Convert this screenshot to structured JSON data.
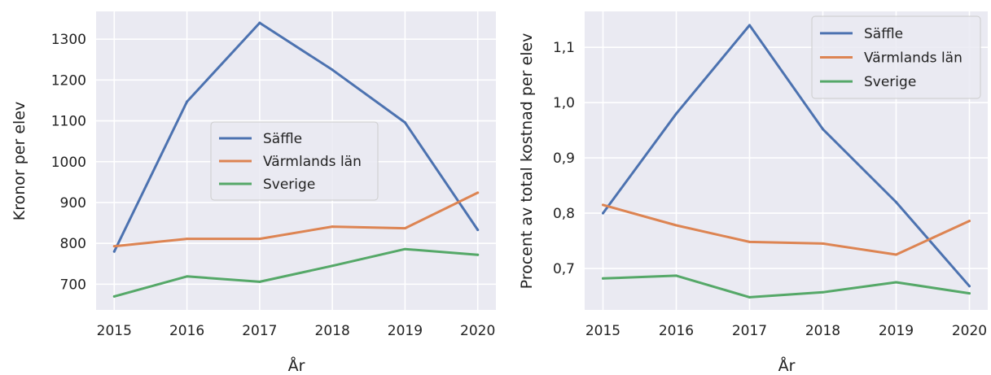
{
  "chart_data": [
    {
      "type": "line",
      "x": [
        2015,
        2016,
        2017,
        2018,
        2019,
        2020
      ],
      "xlabel": "År",
      "ylabel": "Kronor per elev",
      "xticks": [
        "2015",
        "2016",
        "2017",
        "2018",
        "2019",
        "2020"
      ],
      "yticks": [
        "700",
        "800",
        "900",
        "1000",
        "1100",
        "1200",
        "1300"
      ],
      "ytick_values": [
        700,
        800,
        900,
        1000,
        1100,
        1200,
        1300
      ],
      "xlim": [
        2014.75,
        2020.25
      ],
      "ylim": [
        637,
        1368
      ],
      "grid": true,
      "legend": "center-right",
      "series": [
        {
          "name": "Säffle",
          "color": "#4c72b0",
          "values": [
            780,
            1147,
            1340,
            1225,
            1096,
            833
          ]
        },
        {
          "name": "Värmlands län",
          "color": "#dd8452",
          "values": [
            793,
            811,
            811,
            841,
            837,
            924
          ]
        },
        {
          "name": "Sverige",
          "color": "#55a868",
          "values": [
            670,
            719,
            706,
            745,
            786,
            772
          ]
        }
      ]
    },
    {
      "type": "line",
      "x": [
        2015,
        2016,
        2017,
        2018,
        2019,
        2020
      ],
      "xlabel": "År",
      "ylabel": "Procent av total kostnad per elev",
      "xticks": [
        "2015",
        "2016",
        "2017",
        "2018",
        "2019",
        "2020"
      ],
      "yticks": [
        "0,7",
        "0,8",
        "0,9",
        "1,0",
        "1,1"
      ],
      "ytick_values": [
        0.7,
        0.8,
        0.9,
        1.0,
        1.1
      ],
      "xlim": [
        2014.75,
        2020.25
      ],
      "ylim": [
        0.625,
        1.165
      ],
      "grid": true,
      "legend": "top-right",
      "series": [
        {
          "name": "Säffle",
          "color": "#4c72b0",
          "values": [
            0.8,
            0.98,
            1.14,
            0.952,
            0.82,
            0.668
          ]
        },
        {
          "name": "Värmlands län",
          "color": "#dd8452",
          "values": [
            0.815,
            0.778,
            0.748,
            0.745,
            0.725,
            0.786
          ]
        },
        {
          "name": "Sverige",
          "color": "#55a868",
          "values": [
            0.682,
            0.687,
            0.648,
            0.657,
            0.675,
            0.655
          ]
        }
      ]
    }
  ]
}
